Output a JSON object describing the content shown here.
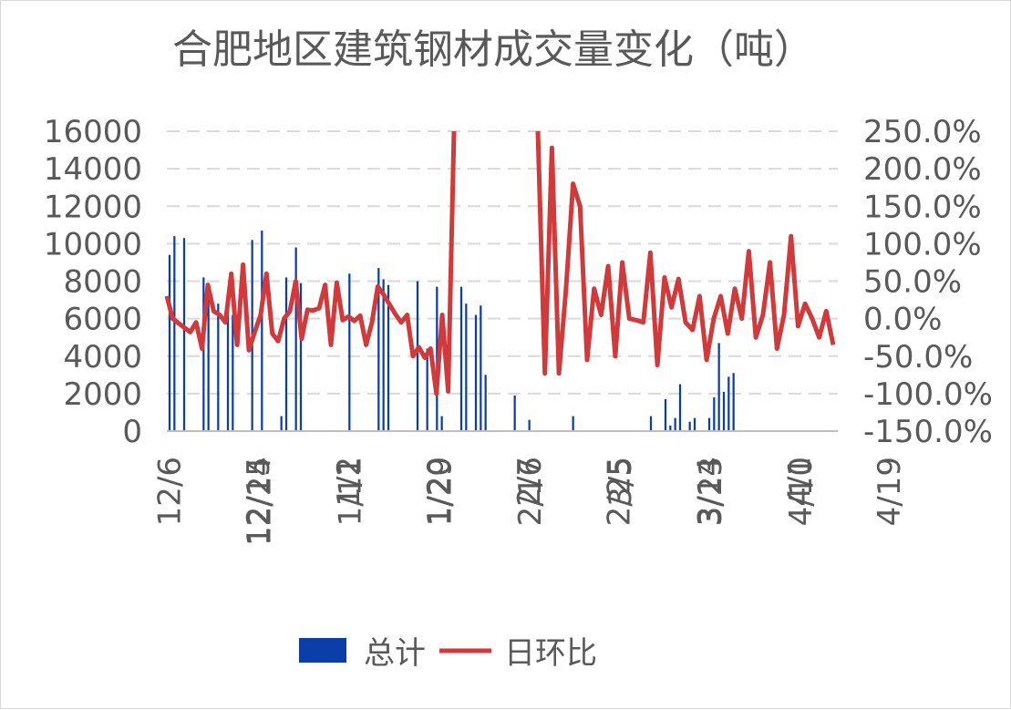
{
  "chart_data": {
    "type": "bar+line",
    "title": "合肥地区建筑钢材成交量变化（吨）",
    "y_left": {
      "lim": [
        0,
        16000
      ],
      "ticks": [
        "0",
        "2000",
        "4000",
        "6000",
        "8000",
        "10000",
        "12000",
        "14000",
        "16000"
      ]
    },
    "y_right": {
      "lim": [
        -1.5,
        2.5
      ],
      "ticks": [
        "-150.0%",
        "-100.0%",
        "-50.0%",
        "0.0%",
        "50.0%",
        "100.0%",
        "150.0%",
        "200.0%",
        "250.0%"
      ]
    },
    "x_tick_labels": [
      "12/6",
      "12/15",
      "12/24",
      "1/2",
      "1/11",
      "1/20",
      "1/29",
      "2/7",
      "2/16",
      "2/25",
      "3/5",
      "3/14",
      "3/23",
      "4/1",
      "4/10",
      "4/19"
    ],
    "x_range_days": 134,
    "grid": "horizontal dashed",
    "legend_position": "bottom",
    "series": [
      {
        "name": "总计",
        "kind": "bar",
        "color": "#0b3ea8",
        "values": [
          9400,
          10400,
          null,
          10300,
          null,
          null,
          null,
          8200,
          7900,
          null,
          6800,
          null,
          7300,
          6200,
          null,
          null,
          null,
          10200,
          null,
          10700,
          null,
          null,
          null,
          800,
          8200,
          null,
          9800,
          7900,
          null,
          null,
          null,
          null,
          null,
          null,
          null,
          null,
          null,
          8400,
          null,
          null,
          null,
          null,
          null,
          8700,
          8100,
          7800,
          null,
          null,
          null,
          null,
          null,
          8000,
          null,
          4400,
          null,
          7700,
          800,
          null,
          null,
          null,
          7700,
          6800,
          null,
          6200,
          6700,
          3000,
          null,
          null,
          null,
          null,
          null,
          1900,
          null,
          null,
          600,
          null,
          null,
          null,
          null,
          null,
          null,
          null,
          null,
          800,
          null,
          null,
          null,
          null,
          null,
          null,
          null,
          null,
          null,
          null,
          null,
          null,
          null,
          null,
          null,
          800,
          null,
          null,
          1700,
          300,
          700,
          2500,
          null,
          500,
          700,
          null,
          null,
          700,
          1800,
          4700,
          2100,
          2900,
          3100,
          null,
          null,
          null,
          null,
          null,
          null,
          null,
          null,
          null,
          null,
          null,
          null,
          null,
          null,
          null,
          null,
          null,
          null,
          null,
          null,
          null
        ]
      },
      {
        "name": "日环比",
        "kind": "line",
        "color": "#d03a3a",
        "values": [
          0.3,
          0.0,
          -0.06,
          -0.12,
          -0.18,
          -0.05,
          -0.4,
          0.45,
          0.1,
          0.05,
          -0.05,
          0.6,
          -0.35,
          0.72,
          -0.42,
          -0.18,
          0.05,
          0.6,
          -0.2,
          -0.3,
          0.0,
          0.1,
          0.5,
          -0.27,
          0.12,
          0.11,
          0.14,
          0.45,
          -0.35,
          0.48,
          -0.02,
          0.03,
          -0.03,
          0.04,
          -0.35,
          -0.05,
          0.43,
          0.32,
          0.19,
          0.06,
          -0.05,
          0.05,
          -0.5,
          -0.38,
          -0.52,
          -0.4,
          -1.0,
          0.05,
          -0.97,
          2.5,
          2.5,
          -0.73,
          2.28,
          -0.73,
          0.4,
          1.8,
          1.5,
          -0.55,
          0.4,
          0.05,
          0.7,
          -0.5,
          0.75,
          0.0,
          -0.02,
          -0.05,
          0.88,
          -0.62,
          0.55,
          0.15,
          0.53,
          -0.05,
          -0.15,
          0.3,
          -0.55,
          0.0,
          0.3,
          -0.2,
          0.4,
          0.0,
          0.9,
          -0.25,
          0.05,
          0.75,
          -0.4,
          0.05,
          1.1,
          -0.1,
          0.2,
          0.0,
          -0.25,
          0.1,
          -0.35
        ]
      }
    ]
  },
  "legend": {
    "bar_label": "总计",
    "line_label": "日环比"
  }
}
